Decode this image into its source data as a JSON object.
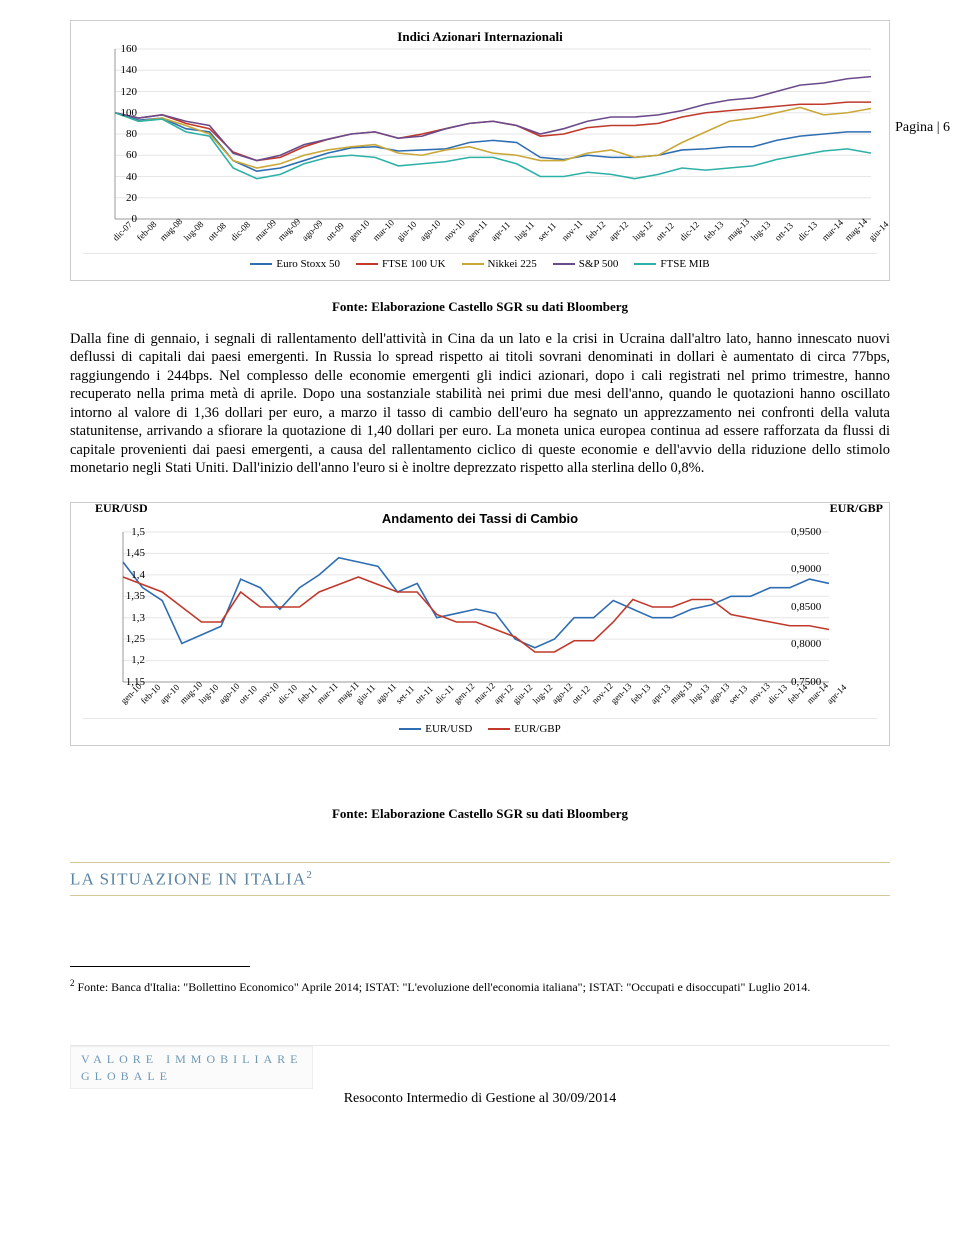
{
  "page_number": "Pagina | 6",
  "chart1": {
    "title": "Indici Azionari Internazionali",
    "ylim": [
      0,
      160
    ],
    "ytick_step": 20,
    "yticks": [
      0,
      20,
      40,
      60,
      80,
      100,
      120,
      140,
      160
    ],
    "xticks": [
      "dic-07",
      "feb-08",
      "mag-08",
      "lug-08",
      "ott-08",
      "dic-08",
      "mar-09",
      "mag-09",
      "ago-09",
      "ott-09",
      "gen-10",
      "mar-10",
      "giu-10",
      "ago-10",
      "nov-10",
      "gen-11",
      "apr-11",
      "lug-11",
      "set-11",
      "nov-11",
      "feb-12",
      "apr-12",
      "lug-12",
      "ott-12",
      "dic-12",
      "feb-13",
      "mag-13",
      "lug-13",
      "ott-13",
      "dic-13",
      "mar-14",
      "mag-14",
      "giu-14"
    ],
    "series": [
      {
        "name": "Euro Stoxx 50",
        "color": "#2f6db2",
        "points": [
          100,
          93,
          95,
          85,
          82,
          55,
          45,
          48,
          55,
          62,
          67,
          68,
          64,
          65,
          66,
          72,
          74,
          72,
          58,
          56,
          60,
          58,
          58,
          60,
          65,
          66,
          68,
          68,
          74,
          78,
          80,
          82,
          82
        ]
      },
      {
        "name": "FTSE 100 UK",
        "color": "#c0392b",
        "points": [
          100,
          95,
          98,
          90,
          85,
          63,
          55,
          58,
          68,
          75,
          80,
          82,
          76,
          80,
          85,
          90,
          92,
          88,
          78,
          80,
          86,
          88,
          88,
          90,
          96,
          100,
          102,
          104,
          106,
          108,
          108,
          110,
          110
        ]
      },
      {
        "name": "Nikkei 225",
        "color": "#c9a837",
        "points": [
          100,
          92,
          95,
          88,
          80,
          55,
          48,
          52,
          60,
          65,
          68,
          70,
          62,
          60,
          65,
          68,
          62,
          60,
          55,
          55,
          62,
          65,
          58,
          60,
          72,
          82,
          92,
          95,
          100,
          105,
          98,
          100,
          104
        ]
      },
      {
        "name": "S&P 500",
        "color": "#6b4a8c",
        "points": [
          100,
          95,
          98,
          92,
          88,
          62,
          55,
          60,
          70,
          75,
          80,
          82,
          76,
          78,
          85,
          90,
          92,
          88,
          80,
          85,
          92,
          96,
          96,
          98,
          102,
          108,
          112,
          114,
          120,
          126,
          128,
          132,
          134
        ]
      },
      {
        "name": "FTSE MIB",
        "color": "#2db1a7",
        "points": [
          100,
          92,
          94,
          82,
          78,
          48,
          38,
          42,
          52,
          58,
          60,
          58,
          50,
          52,
          54,
          58,
          58,
          52,
          40,
          40,
          44,
          42,
          38,
          42,
          48,
          46,
          48,
          50,
          56,
          60,
          64,
          66,
          62
        ]
      }
    ]
  },
  "source1": "Fonte: Elaborazione Castello SGR su dati Bloomberg",
  "paragraph": "Dalla fine di gennaio, i segnali di rallentamento dell'attività in Cina da un lato e la crisi in Ucraina dall'altro lato, hanno innescato nuovi deflussi di capitali dai paesi emergenti. In Russia lo spread rispetto ai titoli sovrani denominati in dollari è aumentato di circa 77bps, raggiungendo i 244bps. Nel complesso delle economie emergenti gli indici azionari, dopo i cali registrati nel primo trimestre, hanno recuperato nella prima metà di aprile. Dopo una sostanziale stabilità nei primi due mesi dell'anno, quando le quotazioni hanno oscillato intorno al valore di 1,36 dollari per euro, a marzo il tasso di cambio dell'euro ha segnato un apprezzamento nei confronti della valuta statunitense, arrivando a sfiorare la quotazione di 1,40 dollari per euro. La moneta unica europea continua ad essere rafforzata da flussi di capitale provenienti dai paesi emergenti, a causa del rallentamento ciclico di queste economie e dell'avvio della riduzione dello stimolo monetario negli Stati Uniti. Dall'inizio dell'anno l'euro si è inoltre deprezzato rispetto alla sterlina dello 0,8%.",
  "chart2": {
    "title": "Andamento dei Tassi di Cambio",
    "left_axis_label": "EUR/USD",
    "right_axis_label": "EUR/GBP",
    "ylim_left": [
      1.15,
      1.5
    ],
    "yticks_left": [
      1.15,
      1.2,
      1.25,
      1.3,
      1.35,
      1.4,
      1.45,
      1.5
    ],
    "yticks_left_labels": [
      "1,15",
      "1,2",
      "1,25",
      "1,3",
      "1,35",
      "1,4",
      "1,45",
      "1,5"
    ],
    "ylim_right": [
      0.75,
      0.95
    ],
    "yticks_right_labels": [
      "0,7500",
      "0,8000",
      "0,8500",
      "0,9000",
      "0,9500"
    ],
    "xticks": [
      "gen-10",
      "feb-10",
      "apr-10",
      "mag-10",
      "lug-10",
      "ago-10",
      "ott-10",
      "nov-10",
      "dic-10",
      "feb-11",
      "mar-11",
      "mag-11",
      "giu-11",
      "ago-11",
      "set-11",
      "ott-11",
      "dic-11",
      "gen-12",
      "mar-12",
      "apr-12",
      "giu-12",
      "lug-12",
      "ago-12",
      "ott-12",
      "nov-12",
      "gen-13",
      "feb-13",
      "apr-13",
      "mag-13",
      "lug-13",
      "ago-13",
      "set-13",
      "nov-13",
      "dic-13",
      "feb-14",
      "mar-14",
      "apr-14"
    ],
    "series": [
      {
        "name": "EUR/USD",
        "color": "#2f6db2",
        "axis": "left",
        "points": [
          1.43,
          1.37,
          1.34,
          1.24,
          1.26,
          1.28,
          1.39,
          1.37,
          1.32,
          1.37,
          1.4,
          1.44,
          1.43,
          1.42,
          1.36,
          1.38,
          1.3,
          1.31,
          1.32,
          1.31,
          1.25,
          1.23,
          1.25,
          1.3,
          1.3,
          1.34,
          1.32,
          1.3,
          1.3,
          1.32,
          1.33,
          1.35,
          1.35,
          1.37,
          1.37,
          1.39,
          1.38
        ]
      },
      {
        "name": "EUR/GBP",
        "color": "#c0392b",
        "axis": "right",
        "points": [
          0.89,
          0.88,
          0.87,
          0.85,
          0.83,
          0.83,
          0.87,
          0.85,
          0.85,
          0.85,
          0.87,
          0.88,
          0.89,
          0.88,
          0.87,
          0.87,
          0.84,
          0.83,
          0.83,
          0.82,
          0.81,
          0.79,
          0.79,
          0.805,
          0.805,
          0.83,
          0.86,
          0.85,
          0.85,
          0.86,
          0.86,
          0.84,
          0.835,
          0.83,
          0.825,
          0.825,
          0.82
        ]
      }
    ]
  },
  "source2": "Fonte: Elaborazione Castello SGR su dati Bloomberg",
  "section_heading": "LA SITUAZIONE IN ITALIA",
  "section_note_mark": "2",
  "footnote": "Fonte: Banca d'Italia: \"Bollettino Economico\" Aprile 2014; ISTAT: \"L'evoluzione dell'economia italiana\"; ISTAT: \"Occupati e disoccupati\" Luglio 2014.",
  "footer_brand_line1": "VALORE IMMOBILIARE",
  "footer_brand_line2": "GLOBALE",
  "footer_doc": "Resoconto Intermedio di Gestione al 30/09/2014"
}
